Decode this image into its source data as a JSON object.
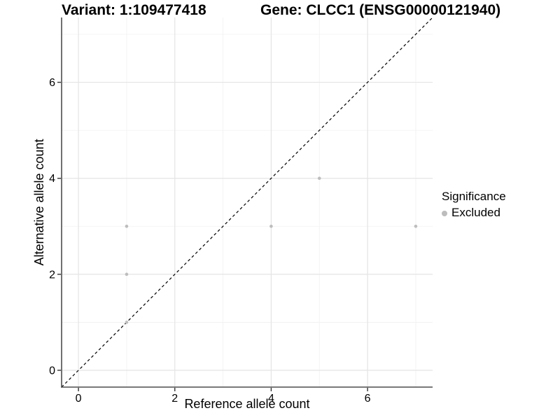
{
  "chart_data": {
    "type": "scatter",
    "title_left": "Variant: 1:109477418",
    "title_right": "Gene: CLCC1 (ENSG00000121940)",
    "xlabel": "Reference allele count",
    "ylabel": "Alternative allele count",
    "xlim": [
      -0.35,
      7.35
    ],
    "ylim": [
      -0.35,
      7.35
    ],
    "x_major_ticks": [
      0,
      2,
      4,
      6
    ],
    "y_major_ticks": [
      0,
      2,
      4,
      6
    ],
    "x_minor_gridlines": [
      1,
      3,
      5,
      7
    ],
    "y_minor_gridlines": [
      1,
      3,
      5,
      7
    ],
    "grid": true,
    "reference_line": {
      "type": "identity",
      "style": "dashed",
      "color": "#000000"
    },
    "series": [
      {
        "name": "Excluded",
        "color": "#bdbdbd",
        "points": [
          [
            1,
            1
          ],
          [
            1,
            2
          ],
          [
            1,
            3
          ],
          [
            4,
            3
          ],
          [
            5,
            4
          ],
          [
            7,
            3
          ]
        ]
      }
    ],
    "legend": {
      "title": "Significance",
      "position": "right",
      "items": [
        {
          "label": "Excluded",
          "color": "#bdbdbd"
        }
      ]
    },
    "colors": {
      "grid_major": "#e4e4e4",
      "grid_minor": "#f1f1f1",
      "axis_line": "#4d4d4d",
      "tick_mark": "#333333",
      "text": "#000000",
      "point": "#bdbdbd"
    }
  }
}
